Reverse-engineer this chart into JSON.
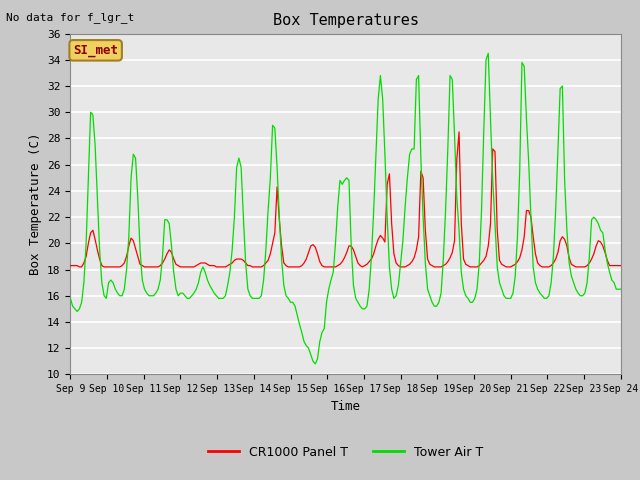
{
  "title": "Box Temperatures",
  "xlabel": "Time",
  "ylabel": "Box Temperature (C)",
  "ylim": [
    10,
    36
  ],
  "yticks": [
    10,
    12,
    14,
    16,
    18,
    20,
    22,
    24,
    26,
    28,
    30,
    32,
    34,
    36
  ],
  "no_data_text": "No data for f_lgr_t",
  "annotation_text": "SI_met",
  "fig_bg_color": "#c8c8c8",
  "plot_bg_color": "#e8e8e8",
  "grid_color": "#ffffff",
  "legend_entries": [
    "CR1000 Panel T",
    "Tower Air T"
  ],
  "line_colors": [
    "red",
    "#00dd00"
  ],
  "xtick_labels": [
    "Sep 9",
    "Sep 10",
    "Sep 11",
    "Sep 12",
    "Sep 13",
    "Sep 14",
    "Sep 15",
    "Sep 16",
    "Sep 17",
    "Sep 18",
    "Sep 19",
    "Sep 20",
    "Sep 21",
    "Sep 22",
    "Sep 23",
    "Sep 24"
  ],
  "panel_t": [
    18.3,
    18.3,
    18.3,
    18.3,
    18.2,
    18.2,
    18.5,
    19.0,
    20.0,
    20.8,
    21.0,
    20.3,
    19.5,
    18.8,
    18.3,
    18.2,
    18.2,
    18.2,
    18.2,
    18.2,
    18.2,
    18.2,
    18.2,
    18.3,
    18.5,
    19.0,
    19.8,
    20.4,
    20.2,
    19.6,
    19.0,
    18.4,
    18.3,
    18.2,
    18.2,
    18.2,
    18.2,
    18.2,
    18.2,
    18.2,
    18.3,
    18.5,
    18.8,
    19.2,
    19.5,
    19.3,
    18.8,
    18.4,
    18.3,
    18.2,
    18.2,
    18.2,
    18.2,
    18.2,
    18.2,
    18.2,
    18.3,
    18.4,
    18.5,
    18.5,
    18.5,
    18.4,
    18.3,
    18.3,
    18.3,
    18.2,
    18.2,
    18.2,
    18.2,
    18.2,
    18.3,
    18.4,
    18.5,
    18.7,
    18.8,
    18.8,
    18.8,
    18.7,
    18.5,
    18.3,
    18.3,
    18.2,
    18.2,
    18.2,
    18.2,
    18.2,
    18.3,
    18.5,
    18.7,
    19.2,
    20.0,
    20.8,
    24.3,
    21.8,
    19.8,
    18.5,
    18.3,
    18.2,
    18.2,
    18.2,
    18.2,
    18.2,
    18.2,
    18.3,
    18.5,
    18.8,
    19.3,
    19.8,
    19.9,
    19.7,
    19.2,
    18.6,
    18.3,
    18.2,
    18.2,
    18.2,
    18.2,
    18.2,
    18.2,
    18.3,
    18.4,
    18.6,
    18.9,
    19.3,
    19.8,
    19.8,
    19.5,
    19.0,
    18.5,
    18.3,
    18.2,
    18.3,
    18.4,
    18.6,
    18.8,
    19.2,
    19.8,
    20.3,
    20.6,
    20.4,
    20.1,
    24.5,
    25.3,
    21.5,
    19.2,
    18.5,
    18.3,
    18.2,
    18.2,
    18.2,
    18.3,
    18.4,
    18.6,
    18.9,
    19.5,
    20.5,
    25.5,
    25.0,
    21.0,
    18.8,
    18.4,
    18.3,
    18.2,
    18.2,
    18.2,
    18.2,
    18.3,
    18.4,
    18.6,
    18.9,
    19.3,
    20.2,
    26.4,
    28.5,
    21.5,
    18.8,
    18.4,
    18.3,
    18.2,
    18.2,
    18.2,
    18.2,
    18.3,
    18.5,
    18.7,
    19.0,
    19.8,
    21.5,
    27.2,
    27.0,
    21.0,
    18.7,
    18.4,
    18.3,
    18.2,
    18.2,
    18.2,
    18.3,
    18.4,
    18.6,
    18.9,
    19.5,
    20.5,
    22.5,
    22.5,
    22.0,
    20.5,
    19.2,
    18.5,
    18.3,
    18.2,
    18.2,
    18.2,
    18.2,
    18.3,
    18.5,
    18.8,
    19.3,
    20.2,
    20.5,
    20.3,
    19.8,
    18.9,
    18.4,
    18.3,
    18.2,
    18.2,
    18.2,
    18.2,
    18.2,
    18.3,
    18.5,
    18.8,
    19.2,
    19.8,
    20.2,
    20.1,
    19.8,
    19.3,
    18.7,
    18.3,
    18.3,
    18.3,
    18.3,
    18.3,
    18.3
  ],
  "tower_t": [
    15.8,
    15.2,
    15.0,
    14.8,
    15.0,
    15.5,
    17.0,
    20.0,
    25.0,
    30.0,
    29.8,
    27.5,
    23.5,
    19.5,
    17.0,
    16.0,
    15.8,
    17.0,
    17.2,
    17.0,
    16.5,
    16.2,
    16.0,
    16.0,
    16.5,
    18.0,
    20.5,
    25.0,
    26.8,
    26.5,
    23.5,
    19.5,
    17.2,
    16.5,
    16.2,
    16.0,
    16.0,
    16.0,
    16.2,
    16.5,
    17.2,
    19.0,
    21.8,
    21.8,
    21.5,
    19.8,
    17.8,
    16.5,
    16.0,
    16.2,
    16.2,
    16.0,
    15.8,
    15.8,
    16.0,
    16.2,
    16.5,
    17.0,
    17.8,
    18.2,
    17.8,
    17.2,
    16.8,
    16.5,
    16.2,
    16.0,
    15.8,
    15.8,
    15.8,
    16.0,
    16.8,
    17.8,
    19.5,
    22.0,
    25.8,
    26.5,
    25.8,
    22.0,
    18.5,
    16.5,
    16.0,
    15.8,
    15.8,
    15.8,
    15.8,
    16.0,
    17.2,
    19.5,
    22.5,
    25.0,
    29.0,
    28.8,
    25.8,
    22.0,
    18.8,
    16.8,
    16.0,
    15.8,
    15.5,
    15.5,
    15.2,
    14.5,
    13.8,
    13.2,
    12.5,
    12.2,
    12.0,
    11.5,
    11.0,
    10.8,
    11.2,
    12.5,
    13.2,
    13.5,
    15.5,
    16.5,
    17.2,
    17.8,
    20.0,
    22.8,
    24.8,
    24.5,
    24.8,
    25.0,
    24.8,
    19.8,
    16.8,
    15.8,
    15.5,
    15.2,
    15.0,
    15.0,
    15.2,
    16.5,
    19.0,
    22.5,
    26.8,
    31.0,
    32.8,
    31.0,
    26.8,
    22.0,
    18.2,
    16.5,
    15.8,
    16.0,
    16.8,
    18.5,
    20.2,
    22.8,
    25.0,
    26.8,
    27.2,
    27.2,
    32.5,
    32.8,
    26.5,
    22.0,
    18.5,
    16.5,
    16.0,
    15.5,
    15.2,
    15.2,
    15.5,
    16.2,
    18.8,
    22.5,
    27.2,
    32.8,
    32.5,
    28.2,
    23.5,
    21.0,
    17.8,
    16.5,
    16.0,
    15.8,
    15.5,
    15.5,
    15.8,
    16.5,
    18.5,
    22.5,
    28.5,
    34.0,
    34.5,
    29.5,
    24.8,
    21.5,
    18.2,
    17.0,
    16.5,
    16.0,
    15.8,
    15.8,
    15.8,
    16.2,
    17.5,
    20.5,
    25.5,
    33.8,
    33.5,
    29.5,
    26.2,
    22.0,
    18.2,
    17.0,
    16.5,
    16.2,
    16.0,
    15.8,
    15.8,
    16.0,
    17.0,
    19.0,
    22.5,
    27.0,
    31.8,
    32.0,
    24.8,
    21.0,
    18.5,
    17.5,
    17.0,
    16.5,
    16.2,
    16.0,
    16.0,
    16.2,
    17.0,
    19.0,
    21.8,
    22.0,
    21.8,
    21.5,
    21.0,
    20.8,
    19.5,
    18.5,
    17.8,
    17.2,
    17.0,
    16.5,
    16.5,
    16.5
  ]
}
